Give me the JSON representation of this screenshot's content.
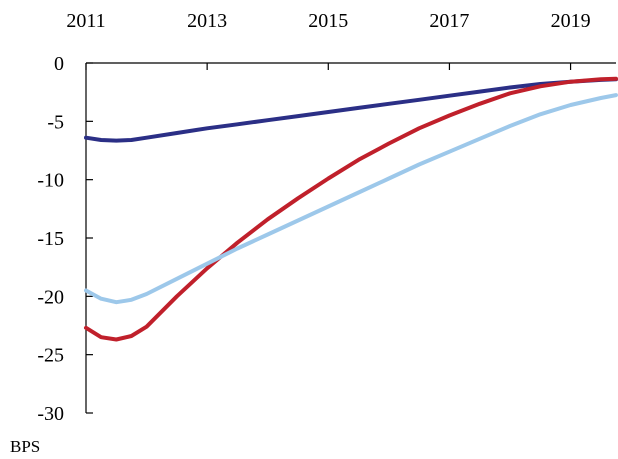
{
  "chart_data": {
    "type": "line",
    "title": "",
    "xlabel": "",
    "ylabel": "BPS",
    "x_ticks": [
      "2011",
      "2013",
      "2015",
      "2017",
      "2019"
    ],
    "y_ticks": [
      "0",
      "-5",
      "-10",
      "-15",
      "-20",
      "-25",
      "-30"
    ],
    "xlim": [
      2011,
      2019.75
    ],
    "ylim": [
      -30,
      0
    ],
    "grid": false,
    "legend": "none",
    "x": [
      2011.0,
      2011.25,
      2011.5,
      2011.75,
      2012.0,
      2012.5,
      2013.0,
      2013.5,
      2014.0,
      2014.5,
      2015.0,
      2015.5,
      2016.0,
      2016.5,
      2017.0,
      2017.5,
      2018.0,
      2018.5,
      2019.0,
      2019.5,
      2019.75
    ],
    "series": [
      {
        "color": "#2b2f86",
        "values": [
          -6.4,
          -6.6,
          -6.65,
          -6.6,
          -6.4,
          -6.0,
          -5.6,
          -5.25,
          -4.9,
          -4.55,
          -4.2,
          -3.85,
          -3.5,
          -3.15,
          -2.8,
          -2.45,
          -2.1,
          -1.8,
          -1.6,
          -1.45,
          -1.4
        ]
      },
      {
        "color": "#c0202b",
        "values": [
          -22.7,
          -23.5,
          -23.7,
          -23.4,
          -22.6,
          -20.0,
          -17.6,
          -15.4,
          -13.4,
          -11.6,
          -9.9,
          -8.3,
          -6.9,
          -5.6,
          -4.5,
          -3.5,
          -2.6,
          -2.0,
          -1.6,
          -1.4,
          -1.35
        ]
      },
      {
        "color": "#9dc8ea",
        "values": [
          -19.5,
          -20.2,
          -20.5,
          -20.3,
          -19.8,
          -18.5,
          -17.2,
          -15.9,
          -14.7,
          -13.5,
          -12.3,
          -11.1,
          -9.9,
          -8.7,
          -7.6,
          -6.5,
          -5.4,
          -4.4,
          -3.6,
          -3.0,
          -2.75
        ]
      }
    ]
  }
}
